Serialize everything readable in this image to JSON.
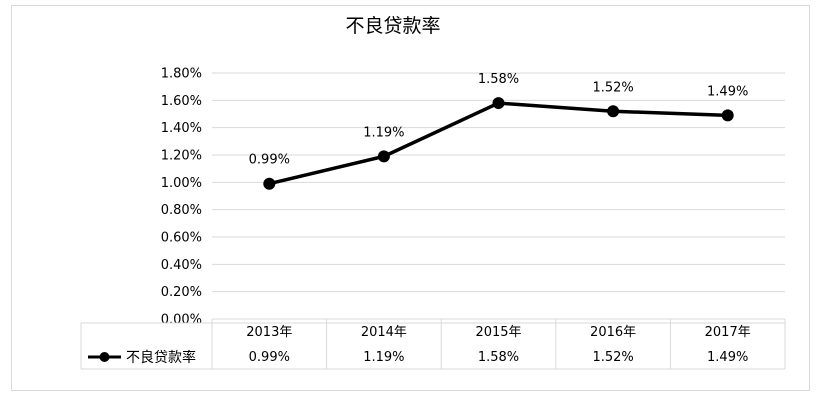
{
  "chart_data": {
    "type": "line",
    "title": "不良贷款率",
    "categories": [
      "2013年",
      "2014年",
      "2015年",
      "2016年",
      "2017年"
    ],
    "series": [
      {
        "name": "不良贷款率",
        "values": [
          0.99,
          1.19,
          1.58,
          1.52,
          1.49
        ],
        "value_labels": [
          "0.99%",
          "1.19%",
          "1.58%",
          "1.52%",
          "1.49%"
        ],
        "color": "#000000",
        "marker": "circle"
      }
    ],
    "ylim": [
      0,
      1.8
    ],
    "y_ticks": [
      0,
      0.2,
      0.4,
      0.6,
      0.8,
      1.0,
      1.2,
      1.4,
      1.6,
      1.8
    ],
    "y_tick_labels": [
      "0.00%",
      "0.20%",
      "0.40%",
      "0.60%",
      "0.80%",
      "1.00%",
      "1.20%",
      "1.40%",
      "1.60%",
      "1.80%"
    ],
    "grid": true,
    "legend": "data-table",
    "data_table": true
  }
}
